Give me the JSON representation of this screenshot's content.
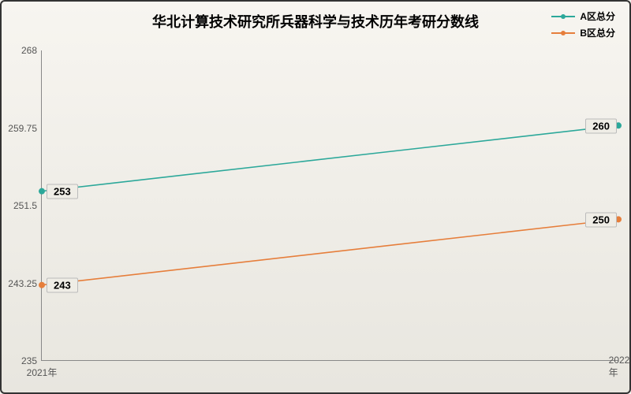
{
  "chart": {
    "type": "line",
    "title": "华北计算技术研究所兵器科学与技术历年考研分数线",
    "title_fontsize": 18,
    "background_top": "#f7f5f0",
    "background_bottom": "#e8e6df",
    "border_color": "#333333",
    "axis_color": "#888888",
    "tick_color": "#555555",
    "tick_fontsize": 12,
    "ylim": [
      235,
      268
    ],
    "yticks": [
      235,
      243.25,
      251.5,
      259.75,
      268
    ],
    "ytick_labels": [
      "235",
      "243.25",
      "251.5",
      "259.75",
      "268"
    ],
    "x_categories": [
      "2021年",
      "2022年"
    ],
    "legend_fontsize": 12,
    "series": [
      {
        "name": "A区总分",
        "color": "#2ca89a",
        "marker": "circle",
        "marker_size": 4,
        "line_width": 1.6,
        "values": [
          253,
          260
        ],
        "labels": [
          "253",
          "260"
        ]
      },
      {
        "name": "B区总分",
        "color": "#e67e3b",
        "marker": "circle",
        "marker_size": 4,
        "line_width": 1.6,
        "values": [
          243,
          250
        ],
        "labels": [
          "243",
          "250"
        ]
      }
    ],
    "data_label_bg": "#efede6",
    "data_label_border": "#bbbbbb",
    "data_label_fontsize": 13
  }
}
